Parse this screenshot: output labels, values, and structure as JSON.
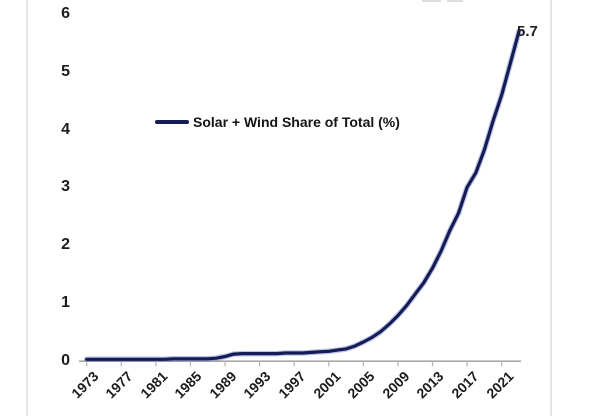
{
  "chart_data": {
    "type": "line",
    "title": "",
    "xlabel": "",
    "ylabel": "",
    "grid": false,
    "legend_position": "center-left",
    "legend_label": "Solar + Wind Share of Total (%)",
    "end_label": "5.7",
    "xlim": [
      1973,
      2023
    ],
    "ylim": [
      0,
      6
    ],
    "y_ticks": [
      0,
      1,
      2,
      3,
      4,
      5,
      6
    ],
    "x_tick_labels": [
      "1973",
      "1977",
      "1981",
      "1985",
      "1989",
      "1993",
      "1997",
      "2001",
      "2005",
      "2009",
      "2013",
      "2017",
      "2021"
    ],
    "x_tick_years": [
      1973,
      1977,
      1981,
      1985,
      1989,
      1993,
      1997,
      2001,
      2005,
      2009,
      2013,
      2017,
      2021
    ],
    "colors": {
      "line": "#151c55",
      "line_halo": "#6a78c0",
      "axis": "#a8a8a8",
      "tick": "#b8b8b8",
      "text": "#1c1c1c"
    },
    "series": [
      {
        "name": "Solar + Wind Share of Total (%)",
        "color": "#151c55",
        "x": [
          1973,
          1974,
          1975,
          1976,
          1977,
          1978,
          1979,
          1980,
          1981,
          1982,
          1983,
          1984,
          1985,
          1986,
          1987,
          1988,
          1989,
          1990,
          1991,
          1992,
          1993,
          1994,
          1995,
          1996,
          1997,
          1998,
          1999,
          2000,
          2001,
          2002,
          2003,
          2004,
          2005,
          2006,
          2007,
          2008,
          2009,
          2010,
          2011,
          2012,
          2013,
          2014,
          2015,
          2016,
          2017,
          2018,
          2019,
          2020,
          2021,
          2022,
          2023
        ],
        "values": [
          0.02,
          0.02,
          0.02,
          0.02,
          0.02,
          0.02,
          0.02,
          0.02,
          0.02,
          0.02,
          0.03,
          0.03,
          0.03,
          0.03,
          0.03,
          0.04,
          0.07,
          0.11,
          0.12,
          0.12,
          0.12,
          0.12,
          0.12,
          0.13,
          0.13,
          0.13,
          0.14,
          0.15,
          0.16,
          0.18,
          0.2,
          0.25,
          0.32,
          0.4,
          0.5,
          0.63,
          0.78,
          0.95,
          1.15,
          1.35,
          1.6,
          1.9,
          2.25,
          2.55,
          3.0,
          3.25,
          3.65,
          4.15,
          4.6,
          5.15,
          5.7
        ]
      }
    ]
  }
}
